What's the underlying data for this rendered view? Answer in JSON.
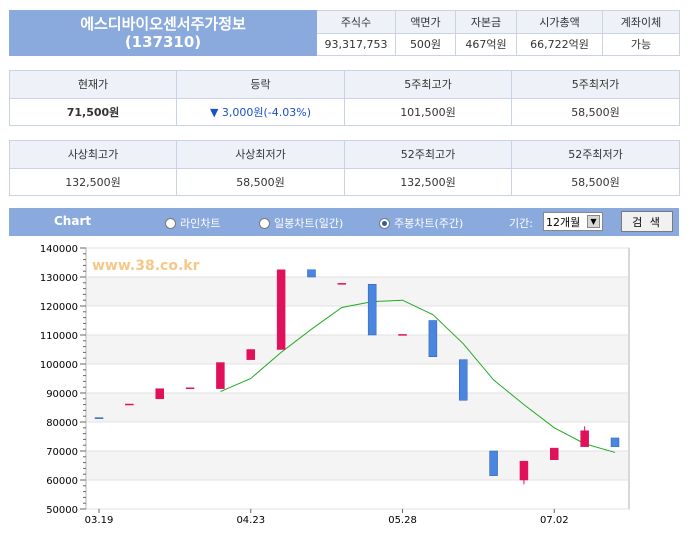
{
  "stock": {
    "name": "에스디바이오센서주가정보",
    "code": "(137310)",
    "headers": [
      "주식수",
      "액면가",
      "자본금",
      "시가총액",
      "계좌이체"
    ],
    "values": [
      "93,317,753",
      "500원",
      "467억원",
      "66,722억원",
      "가능"
    ]
  },
  "price": {
    "headers": [
      "현재가",
      "등락",
      "5주최고가",
      "5주최저가"
    ],
    "current": "71,500원",
    "change": "▼ 3,000원(-4.03%)",
    "high5": "101,500원",
    "low5": "58,500원"
  },
  "records": {
    "headers": [
      "사상최고가",
      "사상최저가",
      "52주최고가",
      "52주최저가"
    ],
    "values": [
      "132,500원",
      "58,500원",
      "132,500원",
      "58,500원"
    ]
  },
  "chart_bar": {
    "label": "Chart",
    "radio_line": "라인차트",
    "radio_daily": "일봉차트(일간)",
    "radio_weekly": "주봉차트(주간)",
    "selected": "weekly",
    "period_label": "기간:",
    "period_value": "12개월",
    "search_label": "검 색"
  },
  "chart_data": {
    "type": "candlestick",
    "watermark": "www.38.co.kr",
    "ylim": [
      50000,
      140000
    ],
    "yticks": [
      50000,
      60000,
      70000,
      80000,
      90000,
      100000,
      110000,
      120000,
      130000,
      140000
    ],
    "xticks": [
      "03.19",
      "04.23",
      "05.28",
      "07.02"
    ],
    "up_color": "#e0105a",
    "down_color": "#4a86e0",
    "ma_color": "#22aa22",
    "candles": [
      {
        "open": 81500,
        "close": 81300
      },
      {
        "open": 86000,
        "close": 86200
      },
      {
        "open": 88000,
        "close": 91500
      },
      {
        "open": 91500,
        "close": 91800
      },
      {
        "open": 91500,
        "close": 100500
      },
      {
        "open": 101500,
        "close": 105000
      },
      {
        "open": 105000,
        "close": 132500
      },
      {
        "open": 132500,
        "close": 130000
      },
      {
        "open": 127500,
        "close": 127800
      },
      {
        "open": 127500,
        "close": 110000
      },
      {
        "open": 110000,
        "close": 110200
      },
      {
        "open": 115000,
        "close": 102500
      },
      {
        "open": 101500,
        "close": 87500
      },
      {
        "open": 70000,
        "close": 61500
      },
      {
        "open": 60000,
        "close": 66500,
        "low": 58500
      },
      {
        "open": 67000,
        "close": 71000
      },
      {
        "open": 71500,
        "close": 77000,
        "high": 78500
      },
      {
        "open": 74500,
        "close": 71500
      }
    ],
    "moving_average": [
      {
        "index": 4,
        "value": 90500
      },
      {
        "index": 5,
        "value": 95000
      },
      {
        "index": 6,
        "value": 104000
      },
      {
        "index": 7,
        "value": 112000
      },
      {
        "index": 8,
        "value": 119500
      },
      {
        "index": 9,
        "value": 121500
      },
      {
        "index": 10,
        "value": 122000
      },
      {
        "index": 11,
        "value": 117000
      },
      {
        "index": 12,
        "value": 107000
      },
      {
        "index": 13,
        "value": 94500
      },
      {
        "index": 14,
        "value": 86000
      },
      {
        "index": 15,
        "value": 78000
      },
      {
        "index": 16,
        "value": 72500
      },
      {
        "index": 17,
        "value": 69500
      }
    ]
  }
}
